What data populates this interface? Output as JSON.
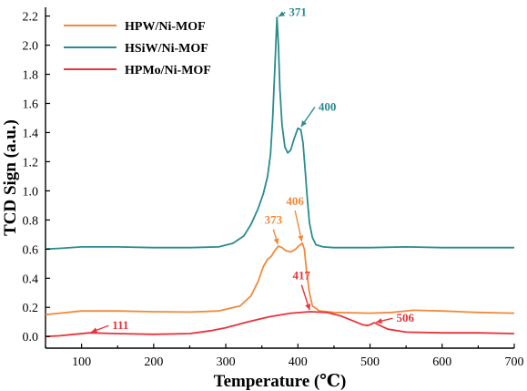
{
  "chart_data": {
    "type": "line",
    "title": "",
    "xlabel": "Temperature  (℃)",
    "ylabel": "TCD Sign (a.u.)",
    "xlim": [
      50,
      700
    ],
    "ylim": [
      -0.08,
      2.26
    ],
    "xticks": [
      100,
      200,
      300,
      400,
      500,
      600,
      700
    ],
    "yticks": [
      0.0,
      0.2,
      0.4,
      0.6,
      0.8,
      1.0,
      1.2,
      1.4,
      1.6,
      1.8,
      2.0,
      2.2
    ],
    "grid": false,
    "legend_position": "top-left",
    "series": [
      {
        "name": "HPW/Ni-MOF",
        "color": "#f08a3c",
        "points": [
          [
            50,
            0.15
          ],
          [
            70,
            0.16
          ],
          [
            100,
            0.175
          ],
          [
            150,
            0.175
          ],
          [
            200,
            0.17
          ],
          [
            250,
            0.168
          ],
          [
            290,
            0.175
          ],
          [
            320,
            0.21
          ],
          [
            335,
            0.28
          ],
          [
            345,
            0.38
          ],
          [
            352,
            0.48
          ],
          [
            358,
            0.53
          ],
          [
            363,
            0.55
          ],
          [
            368,
            0.59
          ],
          [
            373,
            0.62
          ],
          [
            378,
            0.61
          ],
          [
            383,
            0.59
          ],
          [
            390,
            0.58
          ],
          [
            397,
            0.6
          ],
          [
            402,
            0.625
          ],
          [
            406,
            0.64
          ],
          [
            409,
            0.6
          ],
          [
            412,
            0.45
          ],
          [
            416,
            0.3
          ],
          [
            420,
            0.21
          ],
          [
            430,
            0.175
          ],
          [
            450,
            0.165
          ],
          [
            500,
            0.16
          ],
          [
            530,
            0.165
          ],
          [
            560,
            0.18
          ],
          [
            600,
            0.175
          ],
          [
            650,
            0.165
          ],
          [
            700,
            0.16
          ]
        ]
      },
      {
        "name": "HSiW/Ni-MOF",
        "color": "#2a8c8c",
        "points": [
          [
            50,
            0.6
          ],
          [
            70,
            0.605
          ],
          [
            100,
            0.615
          ],
          [
            150,
            0.615
          ],
          [
            200,
            0.61
          ],
          [
            250,
            0.61
          ],
          [
            290,
            0.615
          ],
          [
            310,
            0.64
          ],
          [
            325,
            0.69
          ],
          [
            335,
            0.77
          ],
          [
            345,
            0.88
          ],
          [
            352,
            0.98
          ],
          [
            358,
            1.1
          ],
          [
            362,
            1.25
          ],
          [
            365,
            1.5
          ],
          [
            368,
            1.85
          ],
          [
            371,
            2.19
          ],
          [
            373,
            2.0
          ],
          [
            375,
            1.7
          ],
          [
            378,
            1.45
          ],
          [
            382,
            1.3
          ],
          [
            386,
            1.26
          ],
          [
            390,
            1.28
          ],
          [
            395,
            1.36
          ],
          [
            400,
            1.43
          ],
          [
            404,
            1.42
          ],
          [
            407,
            1.33
          ],
          [
            410,
            1.15
          ],
          [
            413,
            0.95
          ],
          [
            416,
            0.78
          ],
          [
            420,
            0.68
          ],
          [
            425,
            0.63
          ],
          [
            435,
            0.615
          ],
          [
            450,
            0.61
          ],
          [
            500,
            0.61
          ],
          [
            550,
            0.615
          ],
          [
            600,
            0.61
          ],
          [
            650,
            0.61
          ],
          [
            700,
            0.61
          ]
        ]
      },
      {
        "name": "HPMo/Ni-MOF",
        "color": "#e8333a",
        "points": [
          [
            50,
            0.0
          ],
          [
            70,
            0.005
          ],
          [
            90,
            0.015
          ],
          [
            111,
            0.025
          ],
          [
            150,
            0.02
          ],
          [
            200,
            0.015
          ],
          [
            250,
            0.02
          ],
          [
            280,
            0.04
          ],
          [
            300,
            0.06
          ],
          [
            330,
            0.1
          ],
          [
            360,
            0.135
          ],
          [
            390,
            0.16
          ],
          [
            417,
            0.17
          ],
          [
            440,
            0.165
          ],
          [
            460,
            0.14
          ],
          [
            480,
            0.1
          ],
          [
            490,
            0.08
          ],
          [
            497,
            0.075
          ],
          [
            502,
            0.085
          ],
          [
            506,
            0.095
          ],
          [
            512,
            0.08
          ],
          [
            525,
            0.05
          ],
          [
            550,
            0.03
          ],
          [
            600,
            0.025
          ],
          [
            650,
            0.025
          ],
          [
            700,
            0.02
          ]
        ]
      }
    ],
    "annotations": [
      {
        "text": "371",
        "series": 1,
        "x": 371,
        "y": 2.19,
        "tx": 385,
        "ty": 2.2,
        "color": "#2a8c8c",
        "anchor": "start"
      },
      {
        "text": "400",
        "series": 1,
        "x": 403,
        "y": 1.43,
        "tx": 426,
        "ty": 1.55,
        "color": "#2a8c8c",
        "anchor": "start"
      },
      {
        "text": "406",
        "series": 0,
        "x": 406,
        "y": 0.64,
        "tx": 396,
        "ty": 0.89,
        "color": "#f08a3c",
        "anchor": "middle"
      },
      {
        "text": "373",
        "series": 0,
        "x": 373,
        "y": 0.62,
        "tx": 366,
        "ty": 0.76,
        "color": "#f08a3c",
        "anchor": "middle"
      },
      {
        "text": "417",
        "series": 2,
        "x": 417,
        "y": 0.17,
        "tx": 405,
        "ty": 0.38,
        "color": "#e8333a",
        "anchor": "middle"
      },
      {
        "text": "111",
        "series": 2,
        "x": 111,
        "y": 0.025,
        "tx": 140,
        "ty": 0.05,
        "color": "#e8333a",
        "anchor": "start"
      },
      {
        "text": "506",
        "series": 2,
        "x": 506,
        "y": 0.095,
        "tx": 534,
        "ty": 0.1,
        "color": "#e8333a",
        "anchor": "start"
      }
    ]
  }
}
